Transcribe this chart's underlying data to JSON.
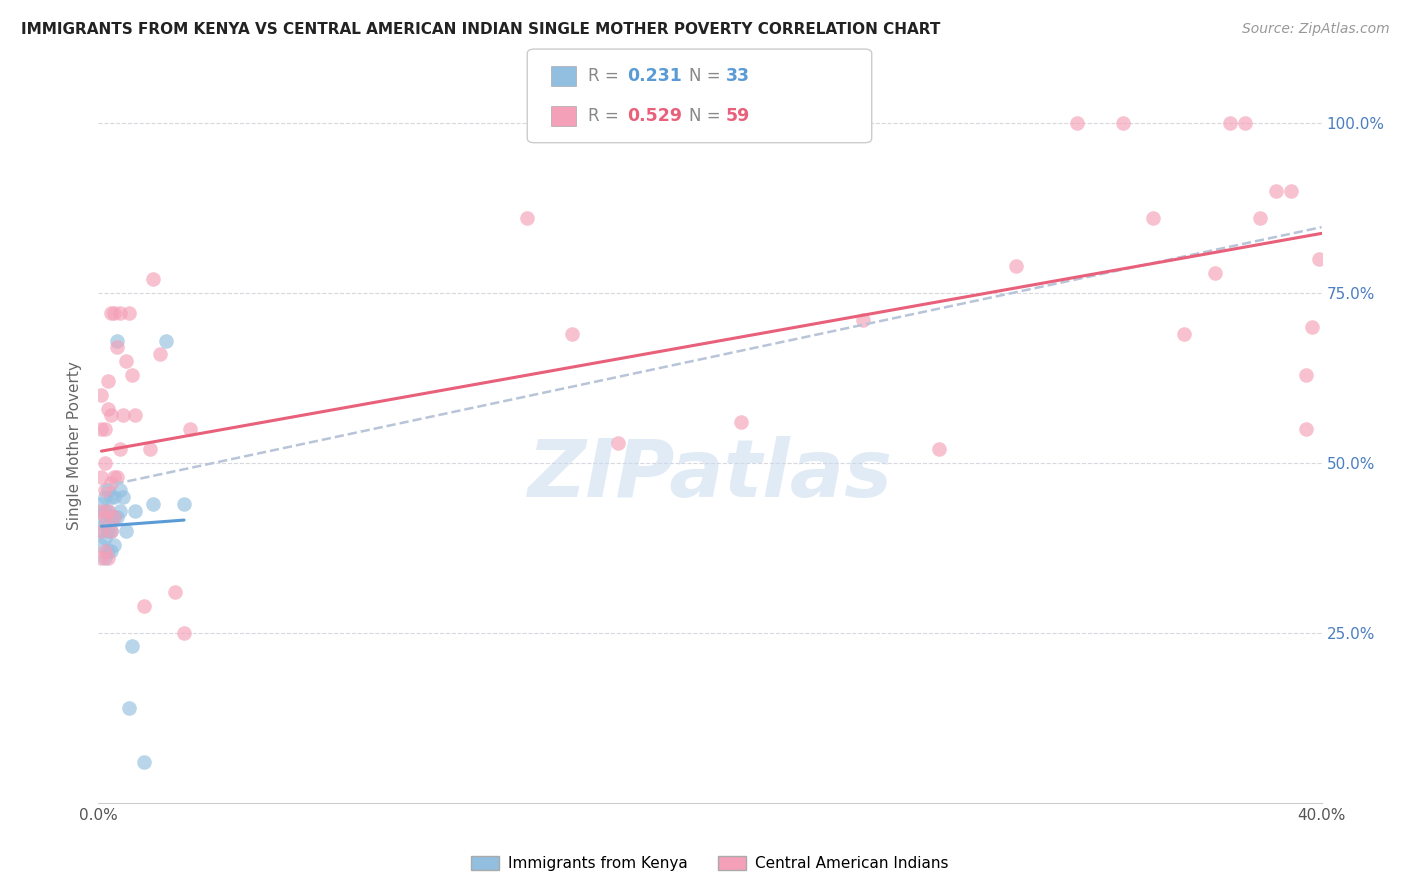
{
  "title": "IMMIGRANTS FROM KENYA VS CENTRAL AMERICAN INDIAN SINGLE MOTHER POVERTY CORRELATION CHART",
  "source": "Source: ZipAtlas.com",
  "ylabel": "Single Mother Poverty",
  "legend_label1": "Immigrants from Kenya",
  "legend_label2": "Central American Indians",
  "legend_r1_prefix": "R = ",
  "legend_r1_val": "0.231",
  "legend_n1_prefix": "N = ",
  "legend_n1_val": "33",
  "legend_r2_prefix": "R = ",
  "legend_r2_val": "0.529",
  "legend_n2_prefix": "N = ",
  "legend_n2_val": "59",
  "blue_color": "#92bfe0",
  "pink_color": "#f4a0b8",
  "blue_line_color": "#5b9bd5",
  "pink_line_color": "#e8607a",
  "dashed_line_color": "#b8c4d8",
  "kenya_x": [
    0.001,
    0.001,
    0.001,
    0.001,
    0.002,
    0.002,
    0.002,
    0.002,
    0.002,
    0.003,
    0.003,
    0.003,
    0.003,
    0.004,
    0.004,
    0.004,
    0.004,
    0.005,
    0.005,
    0.005,
    0.006,
    0.006,
    0.007,
    0.007,
    0.008,
    0.009,
    0.01,
    0.011,
    0.012,
    0.015,
    0.018,
    0.022,
    0.028
  ],
  "kenya_y": [
    0.38,
    0.4,
    0.42,
    0.44,
    0.36,
    0.39,
    0.41,
    0.43,
    0.45,
    0.37,
    0.4,
    0.43,
    0.46,
    0.37,
    0.4,
    0.42,
    0.45,
    0.38,
    0.42,
    0.45,
    0.42,
    0.68,
    0.43,
    0.46,
    0.45,
    0.4,
    0.14,
    0.23,
    0.43,
    0.06,
    0.44,
    0.68,
    0.44
  ],
  "central_x": [
    0.001,
    0.001,
    0.001,
    0.001,
    0.001,
    0.001,
    0.002,
    0.002,
    0.002,
    0.002,
    0.002,
    0.003,
    0.003,
    0.003,
    0.003,
    0.004,
    0.004,
    0.004,
    0.004,
    0.005,
    0.005,
    0.005,
    0.006,
    0.006,
    0.007,
    0.007,
    0.008,
    0.009,
    0.01,
    0.011,
    0.012,
    0.015,
    0.017,
    0.018,
    0.02,
    0.025,
    0.028,
    0.03,
    0.14,
    0.155,
    0.17,
    0.21,
    0.25,
    0.275,
    0.3,
    0.32,
    0.335,
    0.345,
    0.355,
    0.365,
    0.37,
    0.375,
    0.38,
    0.385,
    0.39,
    0.395,
    0.395,
    0.397,
    0.399
  ],
  "central_y": [
    0.36,
    0.4,
    0.43,
    0.48,
    0.55,
    0.6,
    0.37,
    0.42,
    0.46,
    0.5,
    0.55,
    0.36,
    0.43,
    0.58,
    0.62,
    0.4,
    0.47,
    0.57,
    0.72,
    0.42,
    0.48,
    0.72,
    0.48,
    0.67,
    0.52,
    0.72,
    0.57,
    0.65,
    0.72,
    0.63,
    0.57,
    0.29,
    0.52,
    0.77,
    0.66,
    0.31,
    0.25,
    0.55,
    0.86,
    0.69,
    0.53,
    0.56,
    0.71,
    0.52,
    0.79,
    1.0,
    1.0,
    0.86,
    0.69,
    0.78,
    1.0,
    1.0,
    0.86,
    0.9,
    0.9,
    0.63,
    0.55,
    0.7,
    0.8
  ],
  "xlim": [
    0.0,
    0.4
  ],
  "ylim": [
    0.0,
    1.05
  ],
  "watermark": "ZIPatlas",
  "background_color": "#ffffff",
  "grid_color": "#d8d8e0",
  "title_fontsize": 11,
  "source_fontsize": 10,
  "label_color_blue": "#4a7fc1",
  "label_color_pink": "#e8607a"
}
